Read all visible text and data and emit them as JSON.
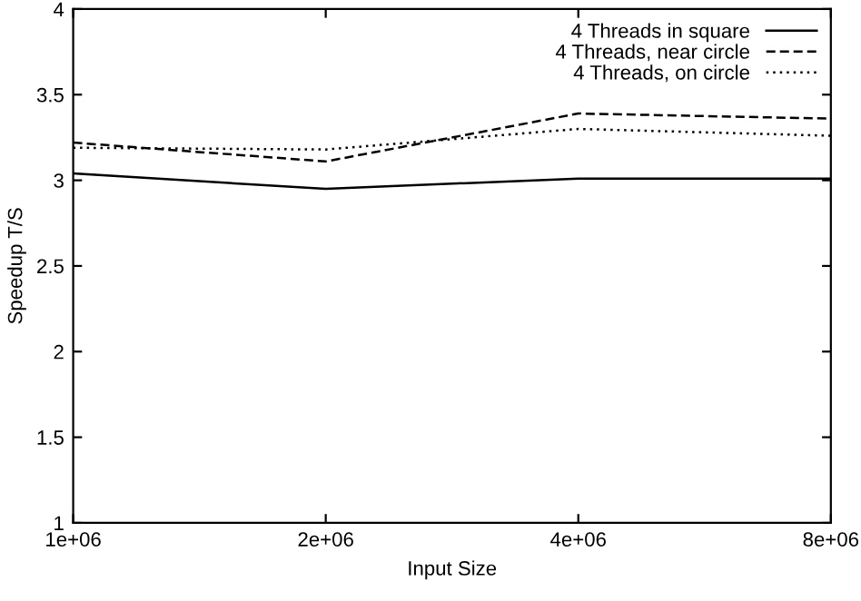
{
  "chart_data": {
    "type": "line",
    "xlabel": "Input Size",
    "ylabel": "Speedup T/S",
    "log": "x",
    "x": [
      1000000,
      2000000,
      4000000,
      8000000
    ],
    "xlim": [
      1000000,
      8000000
    ],
    "xticks": [
      {
        "value": 1000000,
        "label": "1e+06"
      },
      {
        "value": 2000000,
        "label": "2e+06"
      },
      {
        "value": 4000000,
        "label": "4e+06"
      },
      {
        "value": 8000000,
        "label": "8e+06"
      }
    ],
    "ylim": [
      1,
      4
    ],
    "yticks": [
      1,
      1.5,
      2,
      2.5,
      3,
      3.5,
      4
    ],
    "grid": false,
    "legend": "top right",
    "marker": "none",
    "series": [
      {
        "name": "4 Threads in square",
        "color": "#000000",
        "line_style": "solid",
        "values": [
          3.04,
          2.95,
          3.01,
          3.01
        ]
      },
      {
        "name": "4 Threads, near circle",
        "color": "#000000",
        "line_style": "dashed",
        "values": [
          3.22,
          3.11,
          3.39,
          3.36
        ]
      },
      {
        "name": "4 Threads, on circle",
        "color": "#000000",
        "line_style": "dotted",
        "values": [
          3.19,
          3.18,
          3.3,
          3.26
        ]
      }
    ]
  }
}
